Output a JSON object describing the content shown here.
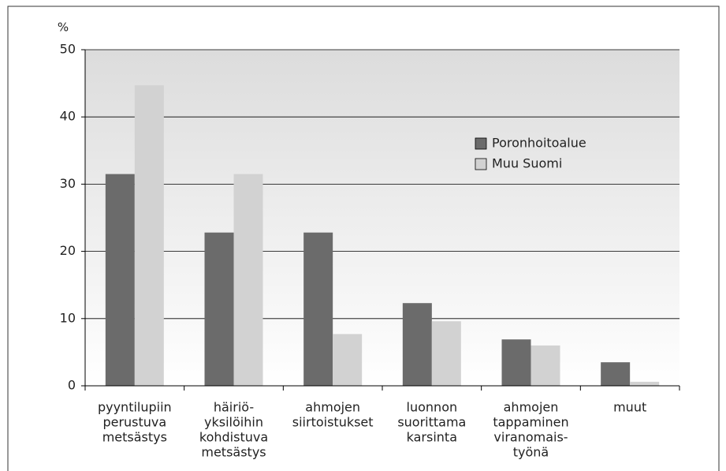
{
  "chart_data": {
    "type": "bar",
    "y_label": "%",
    "categories": [
      [
        "pyyntilupiin",
        "perustuva",
        "metsästys"
      ],
      [
        "häiriö-",
        "yksilöihin",
        "kohdistuva",
        "metsästys"
      ],
      [
        "ahmojen",
        "siirtoistukset"
      ],
      [
        "luonnon",
        "suorittama",
        "karsinta"
      ],
      [
        "ahmojen",
        "tappaminen",
        "viranomais-",
        "työnä"
      ],
      [
        "muut"
      ]
    ],
    "series": [
      {
        "name": "Poronhoitoalue",
        "color": "#6b6b6b",
        "values": [
          31.5,
          22.8,
          22.8,
          12.3,
          6.9,
          3.5
        ]
      },
      {
        "name": "Muu Suomi",
        "color": "#d2d2d2",
        "values": [
          44.7,
          31.5,
          7.7,
          9.6,
          6.0,
          0.6
        ]
      }
    ],
    "ylim": [
      0,
      50
    ],
    "yticks": [
      0,
      10,
      20,
      30,
      40,
      50
    ],
    "grid": true
  }
}
